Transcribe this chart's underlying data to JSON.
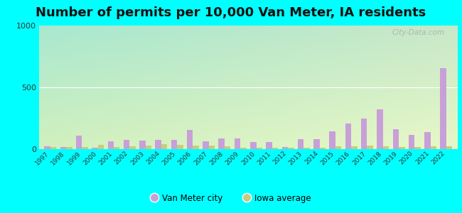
{
  "title": "Number of permits per 10,000 Van Meter, IA residents",
  "years": [
    1997,
    1998,
    1999,
    2000,
    2001,
    2002,
    2003,
    2004,
    2005,
    2006,
    2007,
    2008,
    2009,
    2010,
    2011,
    2012,
    2013,
    2014,
    2015,
    2016,
    2017,
    2018,
    2019,
    2020,
    2021,
    2022
  ],
  "van_meter": [
    25,
    18,
    110,
    12,
    65,
    75,
    68,
    72,
    72,
    155,
    62,
    88,
    85,
    58,
    55,
    18,
    82,
    82,
    145,
    205,
    250,
    320,
    160,
    115,
    140,
    655
  ],
  "iowa_avg": [
    18,
    18,
    18,
    32,
    18,
    22,
    28,
    42,
    32,
    28,
    28,
    22,
    10,
    12,
    10,
    10,
    12,
    12,
    22,
    22,
    28,
    22,
    18,
    18,
    22,
    22
  ],
  "city_color": "#c8a0d8",
  "iowa_color": "#c8cc80",
  "bg_color": "#00ffff",
  "chart_bg_tl": "#a8e8d0",
  "chart_bg_br": "#e8f8c8",
  "ylim": [
    0,
    1000
  ],
  "yticks": [
    0,
    500,
    1000
  ],
  "title_fontsize": 13,
  "legend_city": "Van Meter city",
  "legend_iowa": "Iowa average",
  "watermark": "City-Data.com"
}
